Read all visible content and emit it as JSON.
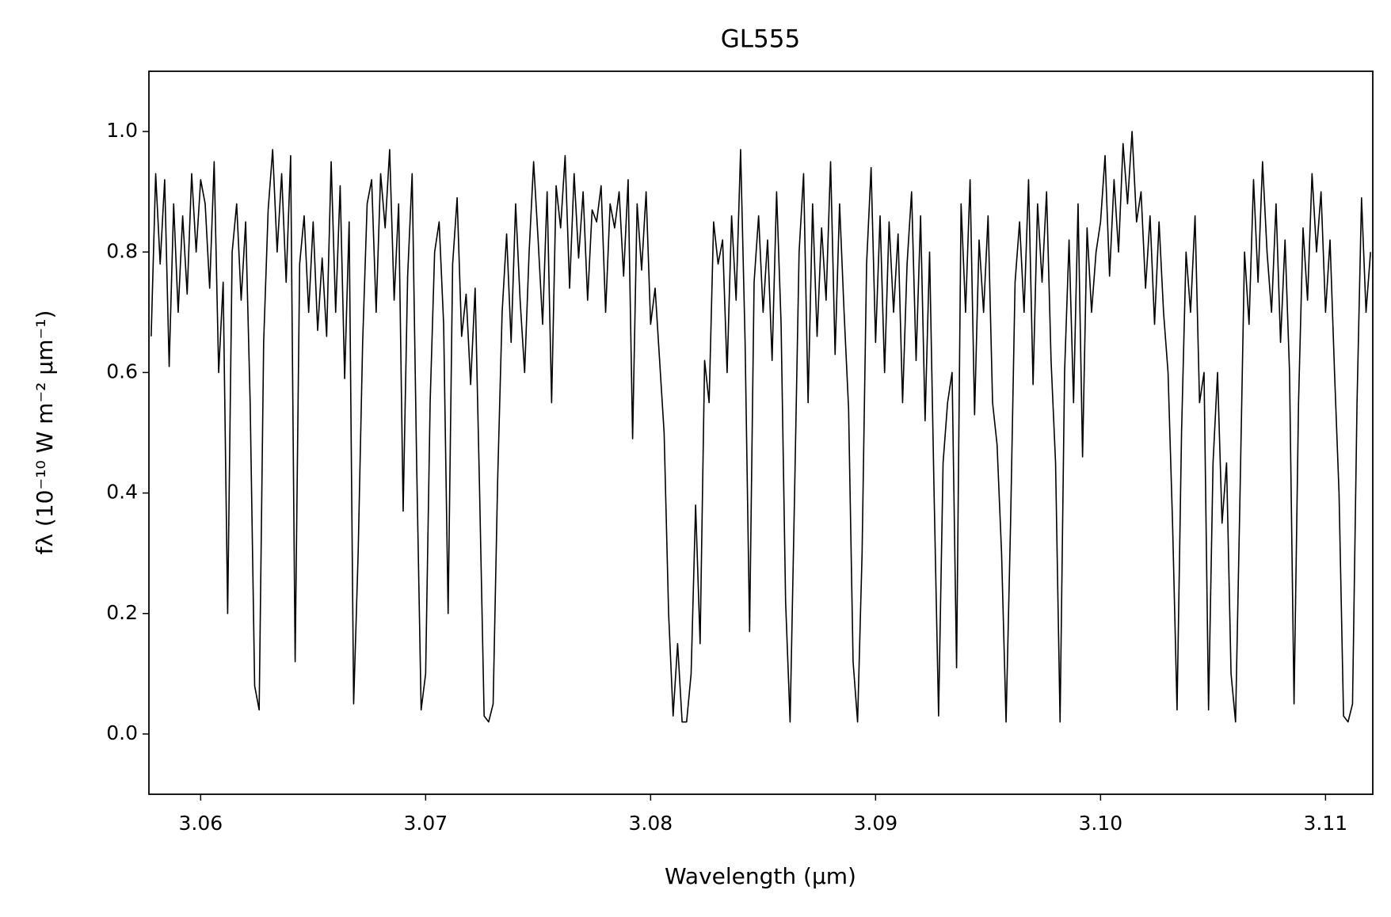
{
  "chart_data": {
    "type": "line",
    "title": "GL555",
    "x_label": "Wavelength (μm)",
    "y_label": "fλ (10⁻¹⁰ W m⁻² μm⁻¹)",
    "color": "#000000",
    "xlim": [
      3.0577,
      3.1121
    ],
    "ylim": [
      -0.1,
      1.1
    ],
    "xticks": [
      3.06,
      3.07,
      3.08,
      3.09,
      {
        "value": 3.1,
        "label": "3.10"
      },
      3.11
    ],
    "yticks": [
      {
        "value": 0,
        "label": "0.0"
      },
      0.2,
      0.4,
      0.6,
      0.8,
      {
        "value": 1,
        "label": "1.0"
      }
    ],
    "grid": false,
    "x": [
      3.0578,
      3.058,
      3.0582,
      3.0584,
      3.0586,
      3.0588,
      3.059,
      3.0592,
      3.0594,
      3.0596,
      3.0598,
      3.06,
      3.0602,
      3.0604,
      3.0606,
      3.0608,
      3.061,
      3.0612,
      3.0614,
      3.0616,
      3.0618,
      3.062,
      3.0622,
      3.0624,
      3.0626,
      3.0628,
      3.063,
      3.0632,
      3.0634,
      3.0636,
      3.0638,
      3.064,
      3.0642,
      3.0644,
      3.0646,
      3.0648,
      3.065,
      3.0652,
      3.0654,
      3.0656,
      3.0658,
      3.066,
      3.0662,
      3.0664,
      3.0666,
      3.0668,
      3.067,
      3.0672,
      3.0674,
      3.0676,
      3.0678,
      3.068,
      3.0682,
      3.0684,
      3.0686,
      3.0688,
      3.069,
      3.0692,
      3.0694,
      3.0696,
      3.0698,
      3.07,
      3.0702,
      3.0704,
      3.0706,
      3.0708,
      3.071,
      3.0712,
      3.0714,
      3.0716,
      3.0718,
      3.072,
      3.0722,
      3.0724,
      3.0726,
      3.0728,
      3.073,
      3.0732,
      3.0734,
      3.0736,
      3.0738,
      3.074,
      3.0742,
      3.0744,
      3.0746,
      3.0748,
      3.075,
      3.0752,
      3.0754,
      3.0756,
      3.0758,
      3.076,
      3.0762,
      3.0764,
      3.0766,
      3.0768,
      3.077,
      3.0772,
      3.0774,
      3.0776,
      3.0778,
      3.078,
      3.0782,
      3.0784,
      3.0786,
      3.0788,
      3.079,
      3.0792,
      3.0794,
      3.0796,
      3.0798,
      3.08,
      3.0802,
      3.0804,
      3.0806,
      3.0808,
      3.081,
      3.0812,
      3.0814,
      3.0816,
      3.0818,
      3.082,
      3.0822,
      3.0824,
      3.0826,
      3.0828,
      3.083,
      3.0832,
      3.0834,
      3.0836,
      3.0838,
      3.084,
      3.0842,
      3.0844,
      3.0846,
      3.0848,
      3.085,
      3.0852,
      3.0854,
      3.0856,
      3.0858,
      3.086,
      3.0862,
      3.0864,
      3.0866,
      3.0868,
      3.087,
      3.0872,
      3.0874,
      3.0876,
      3.0878,
      3.088,
      3.0882,
      3.0884,
      3.0886,
      3.0888,
      3.089,
      3.0892,
      3.0894,
      3.0896,
      3.0898,
      3.09,
      3.0902,
      3.0904,
      3.0906,
      3.0908,
      3.091,
      3.0912,
      3.0914,
      3.0916,
      3.0918,
      3.092,
      3.0922,
      3.0924,
      3.0926,
      3.0928,
      3.093,
      3.0932,
      3.0934,
      3.0936,
      3.0938,
      3.094,
      3.0942,
      3.0944,
      3.0946,
      3.0948,
      3.095,
      3.0952,
      3.0954,
      3.0956,
      3.0958,
      3.096,
      3.0962,
      3.0964,
      3.0966,
      3.0968,
      3.097,
      3.0972,
      3.0974,
      3.0976,
      3.0978,
      3.098,
      3.0982,
      3.0984,
      3.0986,
      3.0988,
      3.099,
      3.0992,
      3.0994,
      3.0996,
      3.0998,
      3.1,
      3.1002,
      3.1004,
      3.1006,
      3.1008,
      3.101,
      3.1012,
      3.1014,
      3.1016,
      3.1018,
      3.102,
      3.1022,
      3.1024,
      3.1026,
      3.1028,
      3.103,
      3.1032,
      3.1034,
      3.1036,
      3.1038,
      3.104,
      3.1042,
      3.1044,
      3.1046,
      3.1048,
      3.105,
      3.1052,
      3.1054,
      3.1056,
      3.1058,
      3.106,
      3.1062,
      3.1064,
      3.1066,
      3.1068,
      3.107,
      3.1072,
      3.1074,
      3.1076,
      3.1078,
      3.108,
      3.1082,
      3.1084,
      3.1086,
      3.1088,
      3.109,
      3.1092,
      3.1094,
      3.1096,
      3.1098,
      3.11,
      3.1102,
      3.1104,
      3.1106,
      3.1108,
      3.111,
      3.1112,
      3.1114,
      3.1116,
      3.1118,
      3.112
    ],
    "values": [
      0.66,
      0.93,
      0.78,
      0.92,
      0.61,
      0.88,
      0.7,
      0.86,
      0.73,
      0.93,
      0.8,
      0.92,
      0.88,
      0.74,
      0.95,
      0.6,
      0.75,
      0.2,
      0.8,
      0.88,
      0.72,
      0.85,
      0.55,
      0.08,
      0.04,
      0.65,
      0.87,
      0.97,
      0.8,
      0.93,
      0.75,
      0.96,
      0.12,
      0.78,
      0.86,
      0.7,
      0.85,
      0.67,
      0.79,
      0.66,
      0.95,
      0.7,
      0.91,
      0.59,
      0.85,
      0.05,
      0.3,
      0.65,
      0.88,
      0.92,
      0.7,
      0.93,
      0.84,
      0.97,
      0.72,
      0.88,
      0.37,
      0.76,
      0.93,
      0.45,
      0.04,
      0.1,
      0.55,
      0.8,
      0.85,
      0.68,
      0.2,
      0.78,
      0.89,
      0.66,
      0.73,
      0.58,
      0.74,
      0.4,
      0.03,
      0.02,
      0.05,
      0.42,
      0.7,
      0.83,
      0.65,
      0.88,
      0.72,
      0.6,
      0.8,
      0.95,
      0.82,
      0.68,
      0.9,
      0.55,
      0.91,
      0.84,
      0.96,
      0.74,
      0.93,
      0.79,
      0.9,
      0.72,
      0.87,
      0.85,
      0.91,
      0.7,
      0.88,
      0.84,
      0.9,
      0.76,
      0.92,
      0.49,
      0.88,
      0.77,
      0.9,
      0.68,
      0.74,
      0.62,
      0.5,
      0.2,
      0.03,
      0.15,
      0.02,
      0.02,
      0.1,
      0.38,
      0.15,
      0.62,
      0.55,
      0.85,
      0.78,
      0.82,
      0.6,
      0.86,
      0.72,
      0.97,
      0.65,
      0.17,
      0.75,
      0.86,
      0.7,
      0.82,
      0.62,
      0.9,
      0.68,
      0.22,
      0.02,
      0.4,
      0.8,
      0.93,
      0.55,
      0.88,
      0.66,
      0.84,
      0.72,
      0.95,
      0.63,
      0.88,
      0.7,
      0.54,
      0.12,
      0.02,
      0.3,
      0.78,
      0.94,
      0.65,
      0.86,
      0.6,
      0.85,
      0.7,
      0.83,
      0.55,
      0.78,
      0.9,
      0.62,
      0.86,
      0.52,
      0.8,
      0.4,
      0.03,
      0.45,
      0.55,
      0.6,
      0.11,
      0.88,
      0.7,
      0.92,
      0.53,
      0.82,
      0.7,
      0.86,
      0.55,
      0.48,
      0.3,
      0.02,
      0.35,
      0.75,
      0.85,
      0.7,
      0.92,
      0.58,
      0.88,
      0.75,
      0.9,
      0.62,
      0.45,
      0.02,
      0.6,
      0.82,
      0.55,
      0.88,
      0.46,
      0.84,
      0.7,
      0.8,
      0.85,
      0.96,
      0.76,
      0.92,
      0.8,
      0.98,
      0.88,
      1.0,
      0.85,
      0.9,
      0.74,
      0.86,
      0.68,
      0.85,
      0.7,
      0.6,
      0.35,
      0.04,
      0.5,
      0.8,
      0.7,
      0.86,
      0.55,
      0.6,
      0.04,
      0.45,
      0.6,
      0.35,
      0.45,
      0.1,
      0.02,
      0.4,
      0.8,
      0.68,
      0.92,
      0.75,
      0.95,
      0.8,
      0.7,
      0.88,
      0.65,
      0.82,
      0.6,
      0.05,
      0.55,
      0.84,
      0.72,
      0.93,
      0.8,
      0.9,
      0.7,
      0.82,
      0.6,
      0.4,
      0.03,
      0.02,
      0.05,
      0.55,
      0.89,
      0.7,
      0.8
    ]
  }
}
